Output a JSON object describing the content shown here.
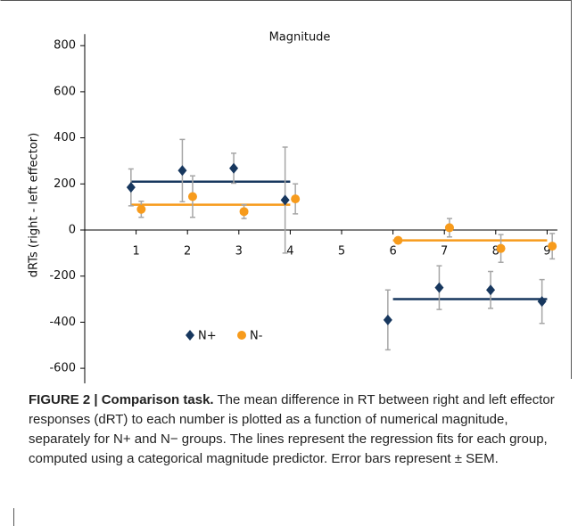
{
  "chart_data": {
    "type": "scatter",
    "title": "Magnitude",
    "y_label": "dRTs (right - left effector)",
    "xlim": [
      0,
      9.2
    ],
    "xticks": [
      1,
      2,
      3,
      4,
      5,
      6,
      7,
      8,
      9
    ],
    "ylim": [
      -700,
      850
    ],
    "yticks": [
      -600,
      -400,
      -200,
      0,
      200,
      400,
      600,
      800
    ],
    "error_color": "#a6a6a6",
    "legend": "lower left",
    "series": [
      {
        "name": "N+",
        "color": "#17375e",
        "marker": "diamond",
        "x": [
          0.9,
          1.9,
          2.9,
          3.9,
          5.9,
          6.9,
          7.9,
          8.9
        ],
        "values": [
          185,
          258,
          268,
          130,
          -390,
          -250,
          -260,
          -310
        ],
        "errors": [
          80,
          135,
          65,
          230,
          130,
          95,
          80,
          95
        ],
        "fit_x": [
          [
            0.9,
            4
          ],
          [
            6,
            9
          ]
        ],
        "fit_values": [
          210,
          -300
        ]
      },
      {
        "name": "N-",
        "color": "#f79b1c",
        "marker": "circle",
        "x": [
          1.1,
          2.1,
          3.1,
          4.1,
          6.1,
          7.1,
          8.1,
          9.1
        ],
        "values": [
          90,
          145,
          80,
          135,
          -45,
          10,
          -80,
          -70
        ],
        "errors": [
          35,
          90,
          30,
          65,
          10,
          40,
          60,
          55
        ],
        "fit_x": [
          [
            0.9,
            4
          ],
          [
            6,
            9
          ]
        ],
        "fit_values": [
          110,
          -45
        ]
      }
    ]
  },
  "caption": {
    "label": "FIGURE 2 | Comparison task.",
    "text": " The mean difference in RT between right and left effector responses (dRT) to each number is plotted as a function of numerical magnitude, separately for N+ and N− groups. The lines represent the regression fits for each group, computed using a categorical magnitude predictor. Error bars represent ± SEM."
  }
}
